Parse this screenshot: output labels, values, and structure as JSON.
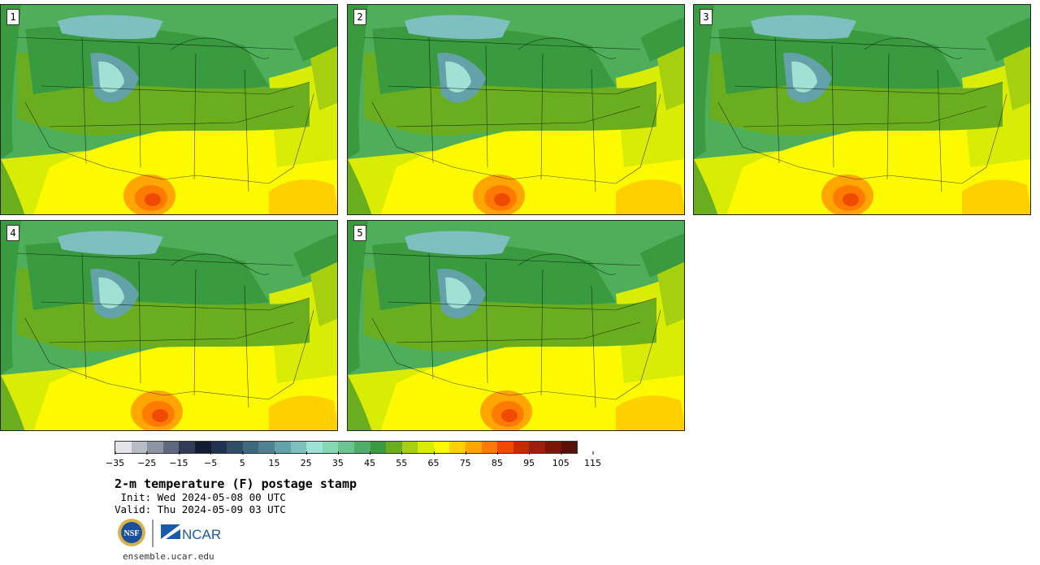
{
  "panels": [
    {
      "label": "1"
    },
    {
      "label": "2"
    },
    {
      "label": "3"
    },
    {
      "label": "4"
    },
    {
      "label": "5"
    }
  ],
  "colorbar": {
    "colors": [
      "#e3e3e8",
      "#b8bcc6",
      "#8c93a3",
      "#5f6880",
      "#303b57",
      "#101d33",
      "#1f3350",
      "#2f4d68",
      "#3e6780",
      "#4f8190",
      "#63a2a8",
      "#7ec0bf",
      "#9fe2d5",
      "#86d6b2",
      "#6ac48f",
      "#4faf68",
      "#3a9a3f",
      "#6aae20",
      "#a6cf0f",
      "#d9ec06",
      "#fdfa00",
      "#ffd000",
      "#ffa600",
      "#ff7a00",
      "#f04a00",
      "#c82a00",
      "#a01e0e",
      "#7a1608",
      "#5a1004"
    ],
    "tick_labels": [
      "−35",
      "−25",
      "−15",
      "−5",
      "5",
      "15",
      "25",
      "35",
      "45",
      "55",
      "65",
      "75",
      "85",
      "95",
      "105",
      "115"
    ]
  },
  "title": "2-m temperature (F) postage stamp",
  "init_text": " Init: Wed 2024-05-08 00 UTC",
  "valid_text": "Valid: Thu 2024-05-09 03 UTC",
  "logos": {
    "nsf_text": "NSF",
    "ncar_text": "NCAR"
  },
  "url": "ensemble.ucar.edu"
}
